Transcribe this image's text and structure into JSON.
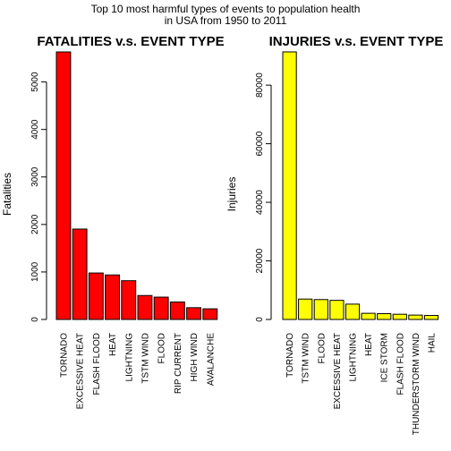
{
  "figure": {
    "title_line1": "Top 10 most harmful types of events to population health",
    "title_line2": "in USA from 1950 to 2011"
  },
  "chart_data": [
    {
      "type": "bar",
      "title": "FATALITIES v.s. EVENT TYPE",
      "xlabel": "",
      "ylabel": "Fatalities",
      "ylim": [
        0,
        5633
      ],
      "yticks": [
        0,
        1000,
        2000,
        3000,
        4000,
        5000
      ],
      "ytick_labels": [
        "0",
        "1000",
        "2000",
        "3000",
        "4000",
        "5000"
      ],
      "color": "#ff0000",
      "categories": [
        "TORNADO",
        "EXCESSIVE HEAT",
        "FLASH FLOOD",
        "HEAT",
        "LIGHTNING",
        "TSTM WIND",
        "FLOOD",
        "RIP CURRENT",
        "HIGH WIND",
        "AVALANCHE"
      ],
      "values": [
        5633,
        1903,
        978,
        937,
        816,
        504,
        470,
        368,
        248,
        224
      ],
      "grid": false
    },
    {
      "type": "bar",
      "title": "INJURIES v.s. EVENT TYPE",
      "xlabel": "",
      "ylabel": "Injuries",
      "ylim": [
        0,
        91346
      ],
      "yticks": [
        0,
        20000,
        40000,
        60000,
        80000
      ],
      "ytick_labels": [
        "0",
        "20000",
        "40000",
        "60000",
        "80000"
      ],
      "color": "#ffff00",
      "categories": [
        "TORNADO",
        "TSTM WIND",
        "FLOOD",
        "EXCESSIVE HEAT",
        "LIGHTNING",
        "HEAT",
        "ICE STORM",
        "FLASH FLOOD",
        "THUNDERSTORM WIND",
        "HAIL"
      ],
      "values": [
        91346,
        6957,
        6789,
        6525,
        5230,
        2100,
        1975,
        1777,
        1488,
        1361
      ],
      "grid": false
    }
  ]
}
